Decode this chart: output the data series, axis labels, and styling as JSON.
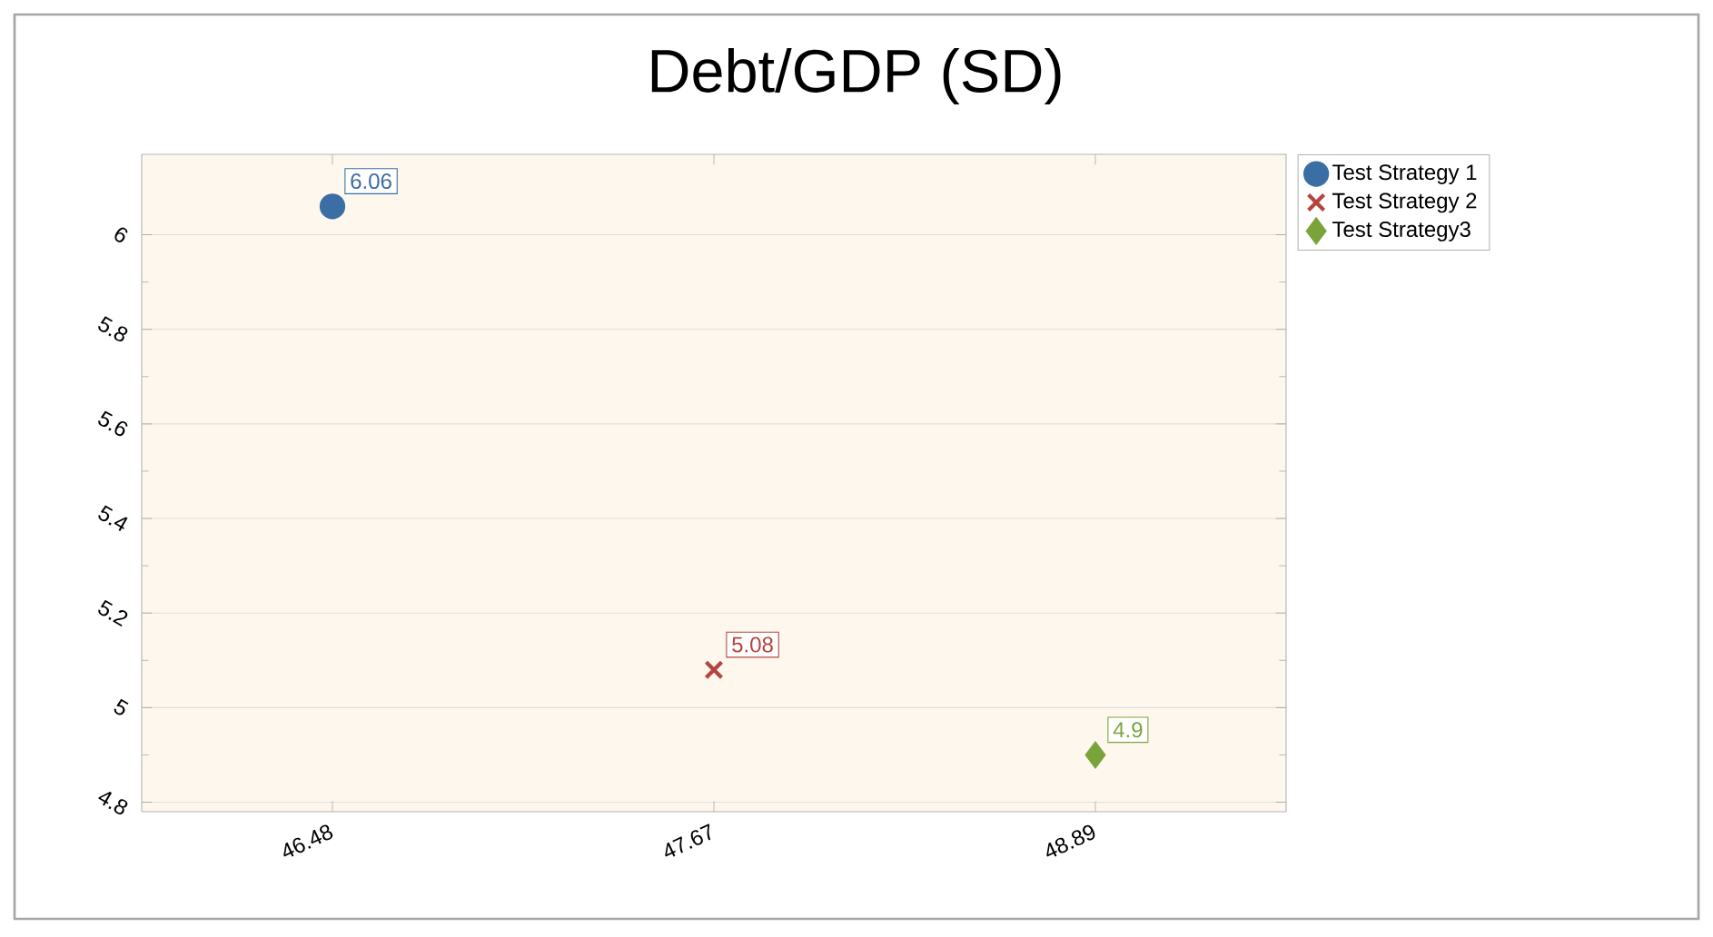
{
  "chart_data": {
    "type": "scatter",
    "title": "Debt/GDP (SD)",
    "categories": [
      "46.48",
      "47.67",
      "48.89"
    ],
    "series": [
      {
        "name": "Test Strategy 1",
        "color": "#3a6ea5",
        "marker": "circle",
        "values": [
          6.06,
          null,
          null
        ],
        "value_labels": [
          "6.06",
          null,
          null
        ]
      },
      {
        "name": "Test Strategy 2",
        "color": "#b5443f",
        "marker": "cross",
        "values": [
          null,
          5.08,
          null
        ],
        "value_labels": [
          null,
          "5.08",
          null
        ]
      },
      {
        "name": "Test Strategy3",
        "color": "#7aa33a",
        "marker": "diamond",
        "values": [
          null,
          null,
          4.9
        ],
        "value_labels": [
          null,
          null,
          "4.9"
        ]
      }
    ],
    "ylim": [
      4.78,
      6.17
    ],
    "yticks": [
      4.8,
      5,
      5.2,
      5.4,
      5.6,
      5.8,
      6
    ],
    "grid": "y",
    "legend": "top right"
  }
}
